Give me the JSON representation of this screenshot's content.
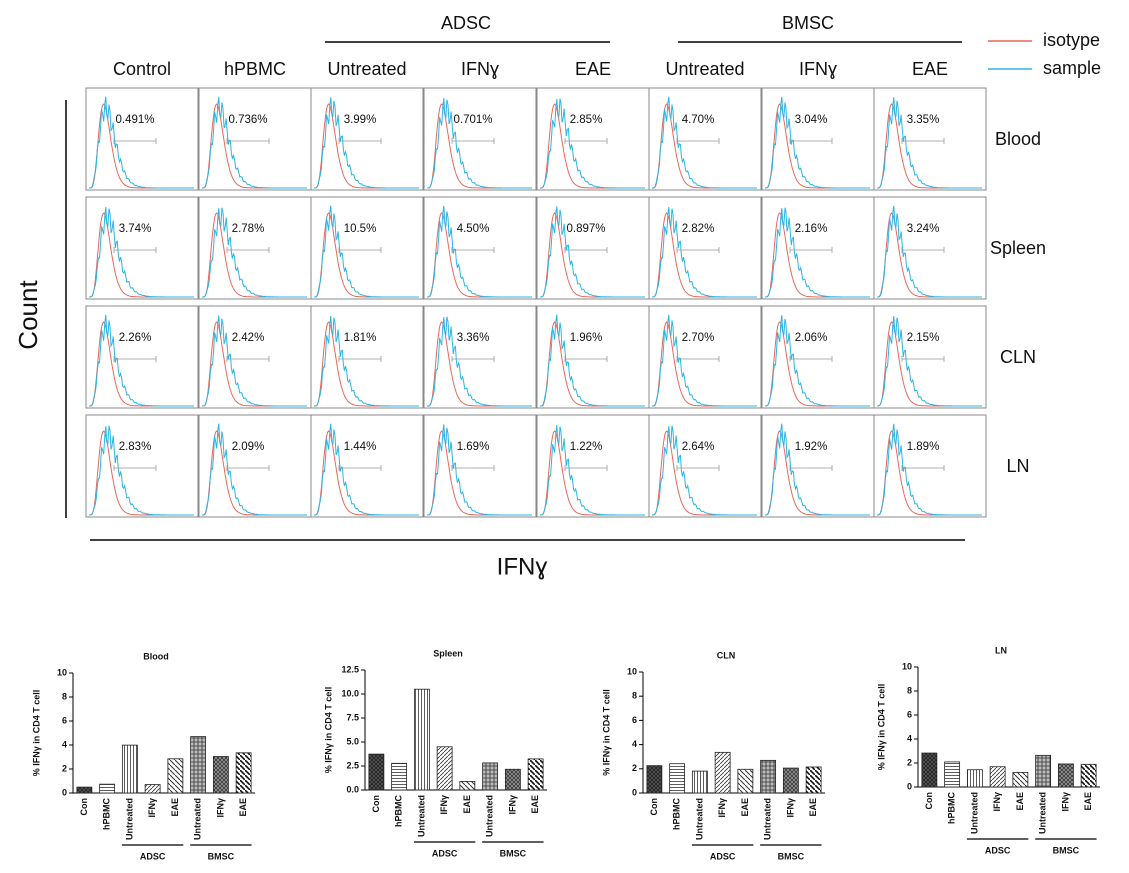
{
  "flow_panel": {
    "group_headers": [
      "ADSC",
      "BMSC"
    ],
    "columns": [
      "Control",
      "hPBMC",
      "Untreated",
      "IFNɣ",
      "EAE",
      "Untreated",
      "IFNɣ",
      "EAE"
    ],
    "legend": [
      {
        "name": "isotype",
        "color": "#e8675c"
      },
      {
        "name": "sample",
        "color": "#2bb5e6"
      }
    ],
    "y_label": "Count",
    "x_label": "IFNɣ",
    "rows": [
      {
        "name": "Blood",
        "percentages": [
          "0.491%",
          "0.736%",
          "3.99%",
          "0.701%",
          "2.85%",
          "4.70%",
          "3.04%",
          "3.35%"
        ]
      },
      {
        "name": "Spleen",
        "percentages": [
          "3.74%",
          "2.78%",
          "10.5%",
          "4.50%",
          "0.897%",
          "2.82%",
          "2.16%",
          "3.24%"
        ]
      },
      {
        "name": "CLN",
        "percentages": [
          "2.26%",
          "2.42%",
          "1.81%",
          "3.36%",
          "1.96%",
          "2.70%",
          "2.06%",
          "2.15%"
        ]
      },
      {
        "name": "LN",
        "percentages": [
          "2.83%",
          "2.09%",
          "1.44%",
          "1.69%",
          "1.22%",
          "2.64%",
          "1.92%",
          "1.89%"
        ]
      }
    ]
  },
  "chart_data": [
    {
      "type": "bar",
      "title": "Blood",
      "y_label": "% IFNγ in CD4 T cell",
      "categories": [
        "Con",
        "hPBMC",
        "Untreated",
        "IFNγ",
        "EAE",
        "Untreated",
        "IFNγ",
        "EAE"
      ],
      "values": [
        0.491,
        0.736,
        3.99,
        0.701,
        2.85,
        4.7,
        3.04,
        3.35
      ],
      "group_labels": [
        "ADSC",
        "BMSC"
      ],
      "ylim": [
        0,
        10
      ],
      "yticks": [
        0,
        2,
        4,
        6,
        8,
        10
      ]
    },
    {
      "type": "bar",
      "title": "Spleen",
      "y_label": "% IFNγ in CD4 T cell",
      "categories": [
        "Con",
        "hPBMC",
        "Untreated",
        "IFNγ",
        "EAE",
        "Untreated",
        "IFNγ",
        "EAE"
      ],
      "values": [
        3.74,
        2.78,
        10.5,
        4.5,
        0.897,
        2.82,
        2.16,
        3.24
      ],
      "group_labels": [
        "ADSC",
        "BMSC"
      ],
      "ylim": [
        0,
        12.5
      ],
      "yticks": [
        {
          "value": 0,
          "label": "0.0"
        },
        2.5,
        {
          "value": 5,
          "label": "5.0"
        },
        7.5,
        {
          "value": 10,
          "label": "10.0"
        },
        12.5
      ]
    },
    {
      "type": "bar",
      "title": "CLN",
      "y_label": "% IFNγ in CD4 T cell",
      "categories": [
        "Con",
        "hPBMC",
        "Untreated",
        "IFNγ",
        "EAE",
        "Untreated",
        "IFNγ",
        "EAE"
      ],
      "values": [
        2.26,
        2.42,
        1.81,
        3.36,
        1.96,
        2.7,
        2.06,
        2.15
      ],
      "group_labels": [
        "ADSC",
        "BMSC"
      ],
      "ylim": [
        0,
        10
      ],
      "yticks": [
        0,
        2,
        4,
        6,
        8,
        10
      ]
    },
    {
      "type": "bar",
      "title": "LN",
      "y_label": "% IFNγ in CD4 T cell",
      "categories": [
        "Con",
        "hPBMC",
        "Untreated",
        "IFNγ",
        "EAE",
        "Untreated",
        "IFNγ",
        "EAE"
      ],
      "values": [
        2.83,
        2.09,
        1.44,
        1.69,
        1.22,
        2.64,
        1.92,
        1.89
      ],
      "group_labels": [
        "ADSC",
        "BMSC"
      ],
      "ylim": [
        0,
        10
      ],
      "yticks": [
        0,
        2,
        4,
        6,
        8,
        10
      ]
    }
  ]
}
